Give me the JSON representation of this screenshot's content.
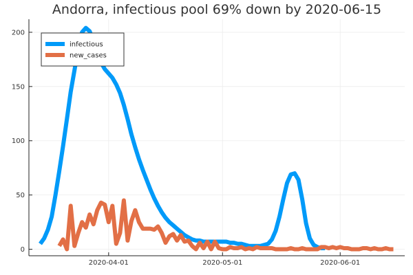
{
  "chart_data": {
    "type": "line",
    "title": "Andorra, infectious pool 69% down by 2020-06-15",
    "xlabel": "",
    "ylabel": "",
    "x_start": "2020-03-14",
    "x_ticks": [
      {
        "label": "2020-04-01",
        "day": 18
      },
      {
        "label": "2020-05-01",
        "day": 48
      },
      {
        "label": "2020-06-01",
        "day": 79
      }
    ],
    "xlim": [
      -3,
      96
    ],
    "ylim": [
      -6,
      212
    ],
    "y_ticks": [
      0,
      50,
      100,
      150,
      200
    ],
    "grid": true,
    "legend_position": "top-left",
    "series": [
      {
        "name": "infectious",
        "color": "#009af9",
        "points": [
          [
            0,
            5
          ],
          [
            1,
            10
          ],
          [
            2,
            18
          ],
          [
            3,
            30
          ],
          [
            4,
            50
          ],
          [
            5,
            72
          ],
          [
            6,
            95
          ],
          [
            7,
            120
          ],
          [
            8,
            145
          ],
          [
            9,
            165
          ],
          [
            10,
            185
          ],
          [
            11,
            200
          ],
          [
            12,
            204
          ],
          [
            13,
            201
          ],
          [
            14,
            192
          ],
          [
            15,
            180
          ],
          [
            16,
            172
          ],
          [
            17,
            166
          ],
          [
            18,
            162
          ],
          [
            19,
            158
          ],
          [
            20,
            152
          ],
          [
            21,
            144
          ],
          [
            22,
            133
          ],
          [
            23,
            120
          ],
          [
            24,
            106
          ],
          [
            25,
            94
          ],
          [
            26,
            83
          ],
          [
            27,
            73
          ],
          [
            28,
            64
          ],
          [
            29,
            55
          ],
          [
            30,
            47
          ],
          [
            31,
            40
          ],
          [
            32,
            34
          ],
          [
            33,
            29
          ],
          [
            34,
            25
          ],
          [
            35,
            22
          ],
          [
            36,
            19
          ],
          [
            37,
            16
          ],
          [
            38,
            13
          ],
          [
            39,
            11
          ],
          [
            40,
            9
          ],
          [
            41,
            8
          ],
          [
            42,
            8
          ],
          [
            43,
            7
          ],
          [
            44,
            7
          ],
          [
            45,
            7
          ],
          [
            46,
            7
          ],
          [
            47,
            7
          ],
          [
            48,
            7
          ],
          [
            49,
            7
          ],
          [
            50,
            6
          ],
          [
            51,
            6
          ],
          [
            52,
            5
          ],
          [
            53,
            5
          ],
          [
            54,
            4
          ],
          [
            55,
            3
          ],
          [
            56,
            3
          ],
          [
            57,
            3
          ],
          [
            58,
            3
          ],
          [
            59,
            4
          ],
          [
            60,
            5
          ],
          [
            61,
            9
          ],
          [
            62,
            17
          ],
          [
            63,
            30
          ],
          [
            64,
            46
          ],
          [
            65,
            61
          ],
          [
            66,
            69
          ],
          [
            67,
            70
          ],
          [
            68,
            64
          ],
          [
            69,
            46
          ],
          [
            70,
            24
          ],
          [
            71,
            10
          ],
          [
            72,
            4
          ],
          [
            73,
            2
          ],
          [
            74,
            1
          ],
          [
            75,
            1
          ]
        ]
      },
      {
        "name": "new_cases",
        "color": "#e26f46",
        "points": [
          [
            5,
            3
          ],
          [
            6,
            9
          ],
          [
            7,
            0
          ],
          [
            8,
            40
          ],
          [
            9,
            3
          ],
          [
            10,
            15
          ],
          [
            11,
            25
          ],
          [
            12,
            20
          ],
          [
            13,
            32
          ],
          [
            14,
            23
          ],
          [
            15,
            36
          ],
          [
            16,
            43
          ],
          [
            17,
            41
          ],
          [
            18,
            25
          ],
          [
            19,
            40
          ],
          [
            20,
            5
          ],
          [
            21,
            15
          ],
          [
            22,
            45
          ],
          [
            23,
            8
          ],
          [
            24,
            26
          ],
          [
            25,
            36
          ],
          [
            26,
            25
          ],
          [
            27,
            19
          ],
          [
            28,
            19
          ],
          [
            29,
            19
          ],
          [
            30,
            18
          ],
          [
            31,
            21
          ],
          [
            32,
            15
          ],
          [
            33,
            6
          ],
          [
            34,
            12
          ],
          [
            35,
            14
          ],
          [
            36,
            8
          ],
          [
            37,
            13
          ],
          [
            38,
            7
          ],
          [
            39,
            8
          ],
          [
            40,
            3
          ],
          [
            41,
            0
          ],
          [
            42,
            6
          ],
          [
            43,
            1
          ],
          [
            44,
            7
          ],
          [
            45,
            0
          ],
          [
            46,
            7
          ],
          [
            47,
            1
          ],
          [
            48,
            0
          ],
          [
            49,
            0
          ],
          [
            50,
            2
          ],
          [
            51,
            1
          ],
          [
            52,
            1
          ],
          [
            53,
            2
          ],
          [
            54,
            0
          ],
          [
            55,
            1
          ],
          [
            56,
            0
          ],
          [
            57,
            2
          ],
          [
            58,
            1
          ],
          [
            59,
            1
          ],
          [
            60,
            1
          ],
          [
            61,
            1
          ],
          [
            62,
            0
          ],
          [
            63,
            0
          ],
          [
            64,
            0
          ],
          [
            65,
            0
          ],
          [
            66,
            1
          ],
          [
            67,
            0
          ],
          [
            68,
            0
          ],
          [
            69,
            1
          ],
          [
            70,
            0
          ],
          [
            71,
            0
          ],
          [
            72,
            0
          ],
          [
            73,
            0
          ],
          [
            74,
            2
          ],
          [
            75,
            2
          ],
          [
            76,
            1
          ],
          [
            77,
            2
          ],
          [
            78,
            1
          ],
          [
            79,
            2
          ],
          [
            80,
            1
          ],
          [
            81,
            1
          ],
          [
            82,
            0
          ],
          [
            83,
            0
          ],
          [
            84,
            0
          ],
          [
            85,
            1
          ],
          [
            86,
            1
          ],
          [
            87,
            0
          ],
          [
            88,
            1
          ],
          [
            89,
            0
          ],
          [
            90,
            0
          ],
          [
            91,
            1
          ],
          [
            92,
            0
          ],
          [
            93,
            0
          ]
        ]
      }
    ]
  }
}
